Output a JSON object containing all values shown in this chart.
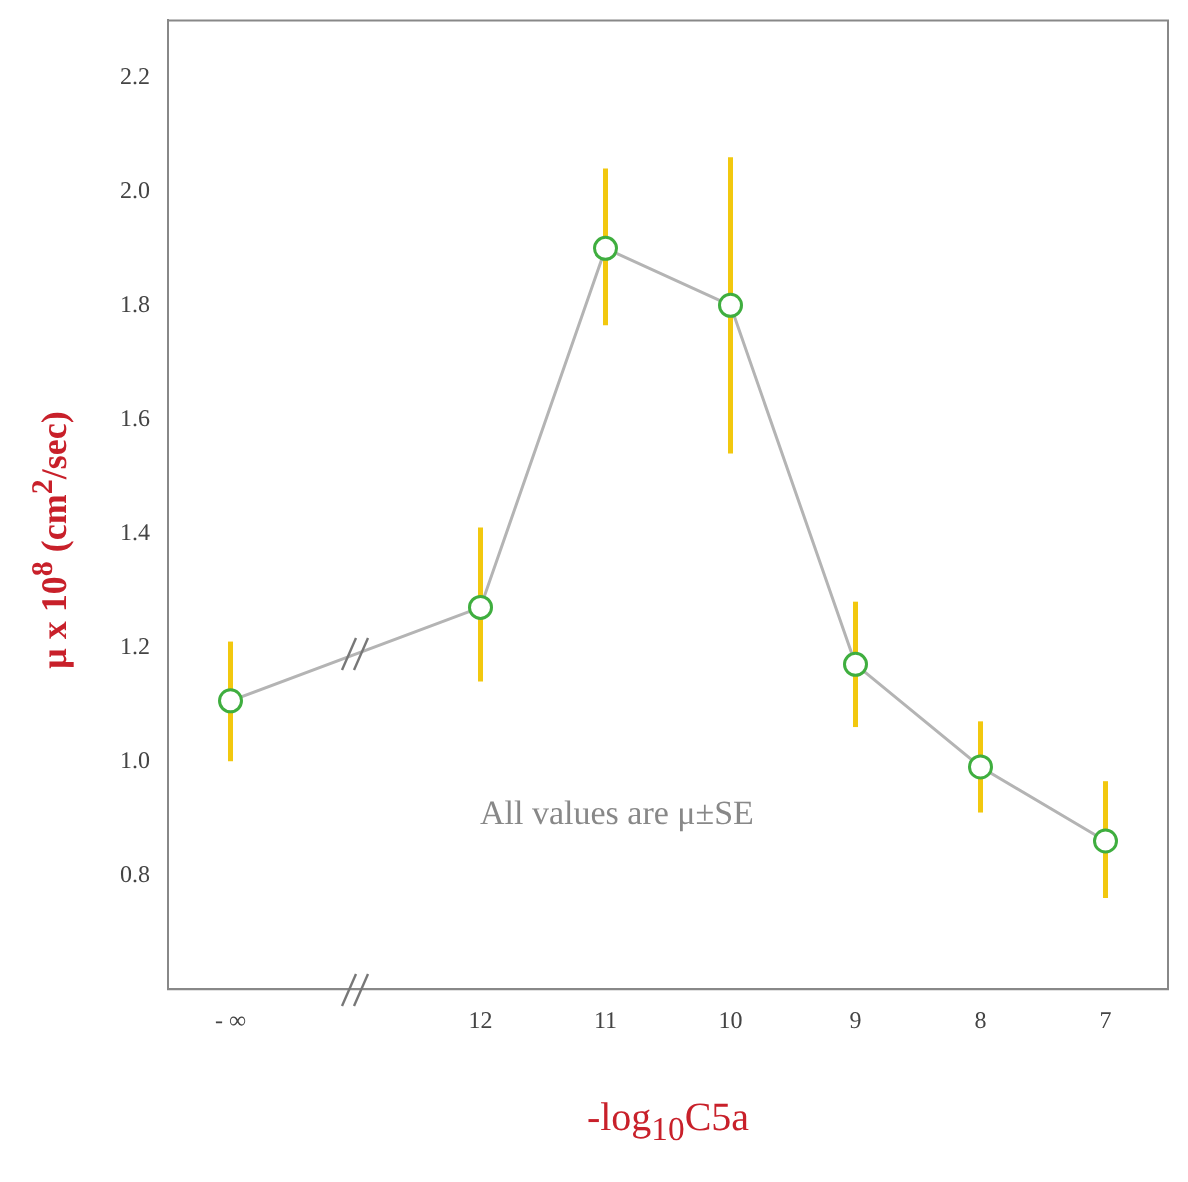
{
  "chart_data": {
    "type": "line",
    "xlabel": "-log$_{10}$C5a",
    "ylabel": "μ x 10$^{8}$ (cm$^{2}$/sec)",
    "annotations": [
      "All values are μ±SE"
    ],
    "categories": [
      "- ∞",
      null,
      "12",
      "11",
      "10",
      "9",
      "8",
      "7"
    ],
    "series": [
      {
        "color": "#b4b4b4",
        "values": [
          1.106,
          null,
          1.27,
          1.9,
          1.8,
          1.17,
          0.99,
          0.86
        ],
        "errors": [
          [
            1.0,
            1.21
          ],
          null,
          [
            1.14,
            1.41
          ],
          [
            1.765,
            2.04
          ],
          [
            1.54,
            2.06
          ],
          [
            1.06,
            1.28
          ],
          [
            0.91,
            1.07
          ],
          [
            0.76,
            0.965
          ]
        ]
      }
    ],
    "ylim": [
      0.6,
      2.3
    ],
    "yticks": [
      {
        "value": 0.8,
        "label": "0.8"
      },
      {
        "value": 1,
        "label": "1.0"
      },
      {
        "value": 1.2,
        "label": "1.2"
      },
      {
        "value": 1.4,
        "label": "1.4"
      },
      {
        "value": 1.6,
        "label": "1.6"
      },
      {
        "value": 1.8,
        "label": "1.8"
      },
      {
        "value": 2,
        "label": "2.0"
      },
      {
        "value": 2.2,
        "label": "2.2"
      }
    ],
    "grid": false,
    "legend": false,
    "marker": "circle",
    "line_style": "solid"
  }
}
